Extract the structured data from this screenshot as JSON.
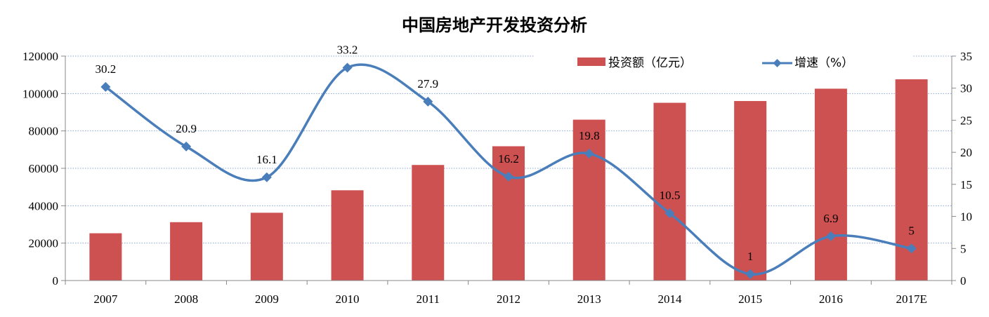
{
  "chart_data": {
    "type": "bar+line",
    "title": "中国房地产开发投资分析",
    "categories": [
      "2007",
      "2008",
      "2009",
      "2010",
      "2011",
      "2012",
      "2013",
      "2014",
      "2015",
      "2016",
      "2017E"
    ],
    "series": [
      {
        "name": "投资额（亿元）",
        "type": "bar",
        "axis": "left",
        "color": "#cd5150",
        "values": [
          25280,
          31203,
          36242,
          48259,
          61796,
          71804,
          86013,
          95036,
          95979,
          102581,
          107600
        ]
      },
      {
        "name": "增速（%）",
        "type": "line",
        "axis": "right",
        "color": "#4a7ebb",
        "marker": "diamond",
        "smooth": true,
        "values": [
          30.2,
          20.9,
          16.1,
          33.2,
          27.9,
          16.2,
          19.8,
          10.5,
          1,
          6.9,
          5
        ],
        "data_labels": [
          "30.2",
          "20.9",
          "16.1",
          "33.2",
          "27.9",
          "16.2",
          "19.8",
          "10.5",
          "1",
          "6.9",
          "5"
        ]
      }
    ],
    "y_left": {
      "lim": [
        0,
        120000
      ],
      "ticks": [
        "0",
        "20000",
        "40000",
        "60000",
        "80000",
        "100000",
        "120000"
      ]
    },
    "y_right": {
      "lim": [
        0,
        35
      ],
      "ticks": [
        "0",
        "5",
        "10",
        "15",
        "20",
        "25",
        "30",
        "35"
      ]
    },
    "grid": true,
    "legend": "top-right"
  }
}
